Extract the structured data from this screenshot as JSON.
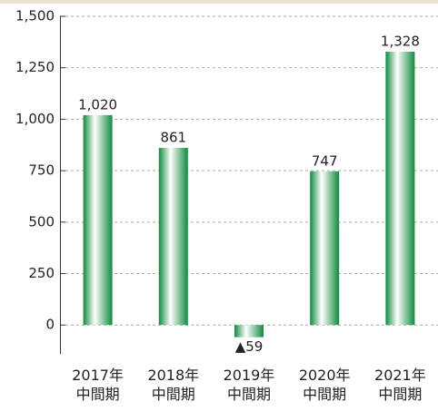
{
  "chart_data": {
    "type": "bar",
    "categories": [
      "2017年\n中間期",
      "2018年\n中間期",
      "2019年\n中間期",
      "2020年\n中間期",
      "2021年\n中間期"
    ],
    "values": [
      1020,
      861,
      -59,
      747,
      1328
    ],
    "value_labels": [
      "1,020",
      "861",
      "▲59",
      "747",
      "1,328"
    ],
    "color": "#1a9a4a",
    "ylim": [
      -140,
      1500
    ],
    "yticks": [
      0,
      250,
      500,
      750,
      {
        "value": 1000,
        "label": "1,000"
      },
      {
        "value": 1250,
        "label": "1,250"
      },
      {
        "value": 1500,
        "label": "1,500"
      }
    ],
    "grid": true
  }
}
